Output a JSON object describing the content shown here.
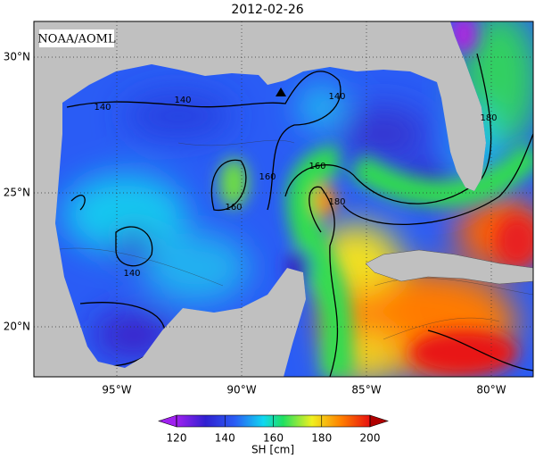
{
  "title": "2012-02-26",
  "credit": "NOAA/AOML",
  "lat_labels": [
    "30°N",
    "25°N",
    "20°N"
  ],
  "lon_labels": [
    "95°W",
    "90°W",
    "85°W",
    "80°W"
  ],
  "contour_labels": [
    "140",
    "140",
    "140",
    "140",
    "160",
    "160",
    "160",
    "180",
    "180"
  ],
  "colorbar": {
    "label": "SH [cm]",
    "ticks": [
      120,
      140,
      160,
      180,
      200
    ]
  }
}
